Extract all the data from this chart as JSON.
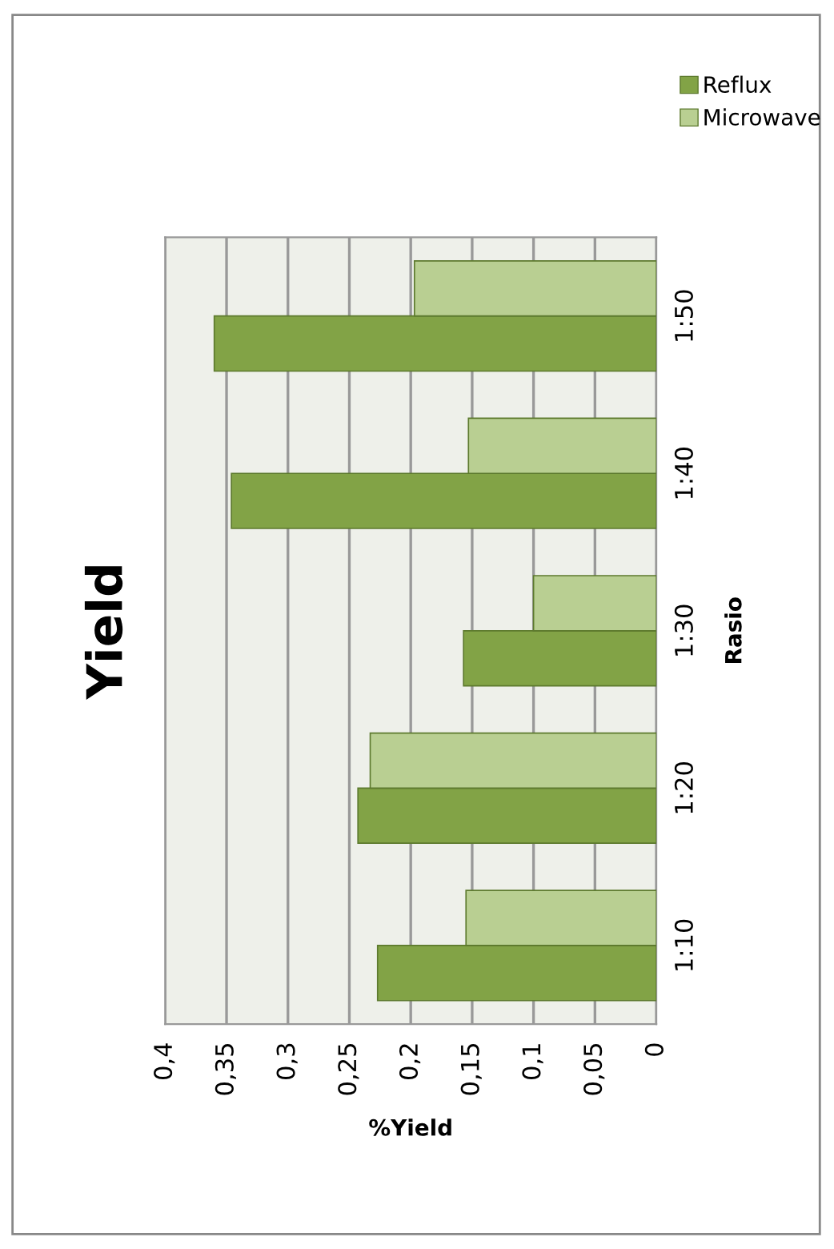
{
  "chart_data": {
    "type": "bar",
    "orientation": "horizontal",
    "title": "Yield",
    "xlabel": "%Yield",
    "ylabel": "Rasio",
    "categories": [
      "1:50",
      "1:40",
      "1:30",
      "1:20",
      "1:10"
    ],
    "series": [
      {
        "name": "Reflux",
        "color": "#82a346",
        "values": [
          0.36,
          0.346,
          0.157,
          0.243,
          0.227
        ]
      },
      {
        "name": "Microwave",
        "color": "#b9cf92",
        "values": [
          0.197,
          0.153,
          0.1,
          0.233,
          0.155
        ]
      }
    ],
    "xlim": [
      0.4,
      0
    ],
    "xticks": [
      {
        "value": 0.4,
        "label": "0,4"
      },
      {
        "value": 0.35,
        "label": "0,35"
      },
      {
        "value": 0.3,
        "label": "0,3"
      },
      {
        "value": 0.25,
        "label": "0,25"
      },
      {
        "value": 0.2,
        "label": "0,2"
      },
      {
        "value": 0.15,
        "label": "0,15"
      },
      {
        "value": 0.1,
        "label": "0,1"
      },
      {
        "value": 0.05,
        "label": "0,05"
      },
      {
        "value": 0,
        "label": "0"
      }
    ],
    "grid": "x",
    "legend": "top"
  }
}
